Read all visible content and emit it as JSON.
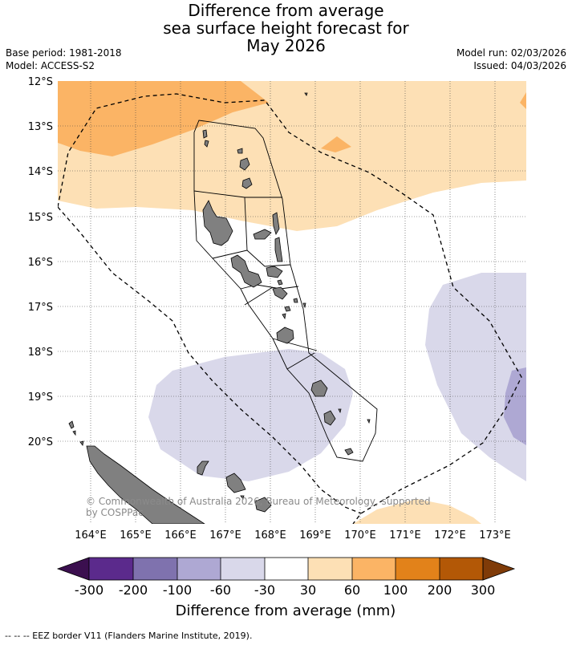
{
  "title": {
    "line1": "Difference from average",
    "line2": "sea surface height forecast for",
    "line3": "May 2026"
  },
  "meta": {
    "base_period": "Base period: 1981-2018",
    "model": "Model: ACCESS-S2",
    "model_run": "Model run: 02/03/2026",
    "issued": "Issued: 04/03/2026"
  },
  "map": {
    "lat_labels": [
      "12°S",
      "13°S",
      "14°S",
      "15°S",
      "16°S",
      "17°S",
      "18°S",
      "19°S",
      "20°S"
    ],
    "lon_labels": [
      "164°E",
      "165°E",
      "166°E",
      "167°E",
      "168°E",
      "169°E",
      "170°E",
      "171°E",
      "172°E",
      "173°E"
    ],
    "copyright": "© Commonwealth of Australia 2026, Bureau of Meteorology, supported by COSPPac",
    "land_color": "#808080",
    "eez_style": "dashed"
  },
  "colorbar": {
    "title": "Difference from average (mm)",
    "tick_labels": [
      "-300",
      "-200",
      "-100",
      "-60",
      "-30",
      "30",
      "60",
      "100",
      "200",
      "300"
    ],
    "colors": [
      "#3b0f4f",
      "#5b2a8c",
      "#7f72ae",
      "#aea8d3",
      "#d9d8ea",
      "#ffffff",
      "#fde0b5",
      "#fbb465",
      "#e2821a",
      "#b35806",
      "#7f3b08"
    ]
  },
  "footer": {
    "legend": "-- -- -- EEZ border V11 (Flanders Marine Institute, 2019)."
  }
}
